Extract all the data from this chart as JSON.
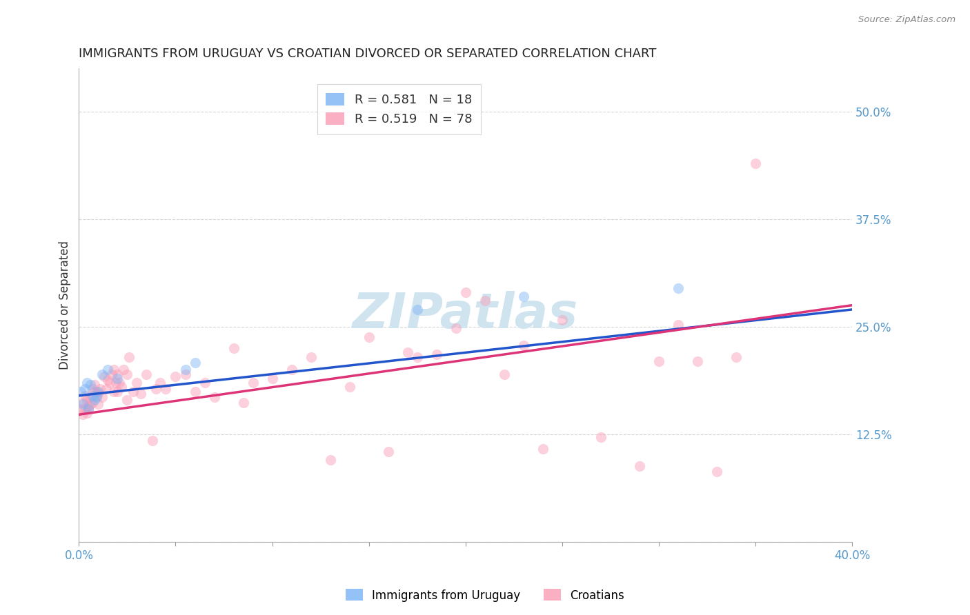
{
  "title": "IMMIGRANTS FROM URUGUAY VS CROATIAN DIVORCED OR SEPARATED CORRELATION CHART",
  "source": "Source: ZipAtlas.com",
  "ylabel": "Divorced or Separated",
  "xlim": [
    0.0,
    0.4
  ],
  "ylim": [
    0.0,
    0.55
  ],
  "yticks": [
    0.0,
    0.125,
    0.25,
    0.375,
    0.5
  ],
  "ytick_labels": [
    "",
    "12.5%",
    "25.0%",
    "37.5%",
    "50.0%"
  ],
  "xticks": [
    0.0,
    0.05,
    0.1,
    0.15,
    0.2,
    0.25,
    0.3,
    0.35,
    0.4
  ],
  "xtick_labels": [
    "0.0%",
    "",
    "",
    "",
    "",
    "",
    "",
    "",
    "40.0%"
  ],
  "legend_entries": [
    {
      "label": "R = 0.581   N = 18",
      "color": "#6699ff"
    },
    {
      "label": "R = 0.519   N = 78",
      "color": "#ff6699"
    }
  ],
  "uruguay_x": [
    0.001,
    0.002,
    0.003,
    0.004,
    0.005,
    0.006,
    0.007,
    0.008,
    0.009,
    0.01,
    0.012,
    0.015,
    0.02,
    0.055,
    0.06,
    0.175,
    0.23,
    0.31
  ],
  "uruguay_y": [
    0.175,
    0.16,
    0.178,
    0.185,
    0.155,
    0.183,
    0.17,
    0.165,
    0.168,
    0.175,
    0.195,
    0.2,
    0.19,
    0.2,
    0.208,
    0.27,
    0.285,
    0.295
  ],
  "croatian_x": [
    0.001,
    0.002,
    0.002,
    0.003,
    0.003,
    0.004,
    0.004,
    0.005,
    0.005,
    0.006,
    0.006,
    0.007,
    0.007,
    0.008,
    0.008,
    0.009,
    0.009,
    0.01,
    0.01,
    0.011,
    0.012,
    0.013,
    0.014,
    0.015,
    0.016,
    0.017,
    0.018,
    0.018,
    0.019,
    0.02,
    0.02,
    0.021,
    0.022,
    0.023,
    0.025,
    0.025,
    0.026,
    0.028,
    0.03,
    0.032,
    0.035,
    0.038,
    0.04,
    0.042,
    0.045,
    0.05,
    0.055,
    0.06,
    0.065,
    0.07,
    0.08,
    0.085,
    0.09,
    0.1,
    0.11,
    0.12,
    0.13,
    0.14,
    0.15,
    0.16,
    0.17,
    0.175,
    0.185,
    0.195,
    0.2,
    0.21,
    0.22,
    0.23,
    0.24,
    0.25,
    0.27,
    0.29,
    0.3,
    0.31,
    0.32,
    0.33,
    0.34,
    0.35
  ],
  "croatian_y": [
    0.155,
    0.148,
    0.162,
    0.155,
    0.17,
    0.15,
    0.165,
    0.155,
    0.158,
    0.16,
    0.168,
    0.162,
    0.178,
    0.175,
    0.183,
    0.17,
    0.175,
    0.172,
    0.16,
    0.178,
    0.168,
    0.192,
    0.178,
    0.188,
    0.185,
    0.195,
    0.2,
    0.175,
    0.185,
    0.175,
    0.195,
    0.185,
    0.18,
    0.2,
    0.195,
    0.165,
    0.215,
    0.175,
    0.185,
    0.172,
    0.195,
    0.118,
    0.178,
    0.185,
    0.178,
    0.192,
    0.195,
    0.175,
    0.185,
    0.168,
    0.225,
    0.162,
    0.185,
    0.19,
    0.2,
    0.215,
    0.095,
    0.18,
    0.238,
    0.105,
    0.22,
    0.215,
    0.218,
    0.248,
    0.29,
    0.28,
    0.195,
    0.228,
    0.108,
    0.258,
    0.122,
    0.088,
    0.21,
    0.252,
    0.21,
    0.082,
    0.215,
    0.44
  ],
  "uruguay_line_x0": 0.0,
  "uruguay_line_y0": 0.17,
  "uruguay_line_x1": 0.4,
  "uruguay_line_y1": 0.27,
  "croatian_line_x0": 0.0,
  "croatian_line_y0": 0.148,
  "croatian_line_x1": 0.4,
  "croatian_line_y1": 0.275,
  "point_size": 120,
  "point_alpha": 0.45,
  "uruguay_color": "#7ab3f5",
  "croatian_color": "#f99bb5",
  "line_blue": "#2255cc",
  "line_pink": "#dd3377",
  "watermark": "ZIPatlas",
  "watermark_color": "#d0e4f0",
  "watermark_fontsize": 52,
  "title_fontsize": 13,
  "axis_label_fontsize": 12,
  "tick_label_color": "#5599cc",
  "tick_label_fontsize": 12,
  "grid_color": "#bbbbbb",
  "grid_linestyle": "--",
  "grid_alpha": 0.6
}
